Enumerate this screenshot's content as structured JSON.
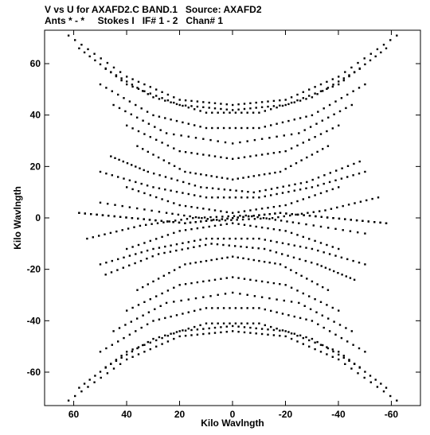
{
  "chart_data": {
    "type": "scatter",
    "title_line1": "V vs U for AXAFD2.C BAND.1   Source: AXAFD2",
    "title_line2": "Ants * - *     Stokes I   IF# 1 - 2   Chan# 1",
    "xlabel": "Kilo Wavlngth",
    "ylabel": "Kilo Wavlngth",
    "xlim": [
      71,
      -71
    ],
    "ylim": [
      -73,
      73
    ],
    "x_axis_reversed": true,
    "x_ticks": [
      60,
      40,
      20,
      0,
      -20,
      -40,
      -60
    ],
    "y_ticks": [
      60,
      40,
      20,
      0,
      -20,
      -40,
      -60
    ],
    "x_tick_labels": [
      "60",
      "40",
      "20",
      "0",
      "-20",
      "-40",
      "-60"
    ],
    "y_tick_labels": [
      "60",
      "40",
      "20",
      "0",
      "-20",
      "-40",
      "-60"
    ],
    "grid": false,
    "marker_color": "#000000",
    "symmetry": "point-symmetric: each (u,v) has conjugate (-u,-v)",
    "series": [
      {
        "tracks": [
          {
            "points": [
              [
                -62,
                71
              ],
              [
                -40,
                55
              ],
              [
                -20,
                46
              ],
              [
                0,
                44
              ],
              [
                20,
                46
              ],
              [
                40,
                55
              ],
              [
                62,
                71
              ]
            ]
          },
          {
            "points": [
              [
                -58,
                66
              ],
              [
                -40,
                52
              ],
              [
                -20,
                44
              ],
              [
                0,
                42
              ],
              [
                20,
                44
              ],
              [
                40,
                52
              ],
              [
                58,
                66
              ]
            ]
          },
          {
            "points": [
              [
                -48,
                58
              ],
              [
                -30,
                47
              ],
              [
                -10,
                41
              ],
              [
                10,
                41
              ],
              [
                30,
                47
              ],
              [
                48,
                58
              ]
            ]
          },
          {
            "points": [
              [
                -50,
                52
              ],
              [
                -30,
                40
              ],
              [
                -10,
                35
              ],
              [
                10,
                35
              ],
              [
                30,
                40
              ],
              [
                50,
                52
              ]
            ]
          },
          {
            "points": [
              [
                -45,
                44
              ],
              [
                -25,
                33
              ],
              [
                0,
                29
              ],
              [
                25,
                33
              ],
              [
                45,
                44
              ]
            ]
          },
          {
            "points": [
              [
                -40,
                36
              ],
              [
                -20,
                26
              ],
              [
                0,
                23
              ],
              [
                20,
                26
              ],
              [
                40,
                36
              ]
            ]
          },
          {
            "points": [
              [
                -36,
                28
              ],
              [
                -18,
                18
              ],
              [
                0,
                15
              ],
              [
                18,
                18
              ],
              [
                36,
                28
              ]
            ]
          },
          {
            "points": [
              [
                -50,
                18
              ],
              [
                -30,
                12
              ],
              [
                -10,
                8
              ],
              [
                10,
                8
              ],
              [
                30,
                12
              ],
              [
                50,
                18
              ]
            ]
          },
          {
            "points": [
              [
                -40,
                12
              ],
              [
                -20,
                5
              ],
              [
                0,
                2
              ],
              [
                20,
                5
              ],
              [
                40,
                12
              ]
            ]
          },
          {
            "points": [
              [
                -55,
                8
              ],
              [
                -35,
                3
              ],
              [
                -15,
                0
              ],
              [
                5,
                -1
              ],
              [
                25,
                2
              ],
              [
                50,
                6
              ]
            ]
          },
          {
            "points": [
              [
                -58,
                -2
              ],
              [
                -38,
                0
              ],
              [
                -18,
                2
              ],
              [
                0,
                0
              ],
              [
                18,
                -2
              ],
              [
                38,
                0
              ],
              [
                58,
                2
              ]
            ]
          },
          {
            "points": [
              [
                -48,
                22
              ],
              [
                -28,
                14
              ],
              [
                -8,
                10
              ],
              [
                12,
                12
              ],
              [
                32,
                18
              ],
              [
                46,
                24
              ]
            ]
          }
        ]
      }
    ]
  }
}
